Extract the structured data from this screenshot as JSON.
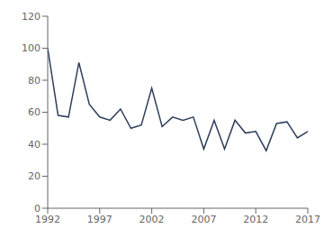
{
  "chart_data": {
    "type": "line",
    "x": [
      1992,
      1993,
      1994,
      1995,
      1996,
      1997,
      1998,
      1999,
      2000,
      2001,
      2002,
      2003,
      2004,
      2005,
      2006,
      2007,
      2008,
      2009,
      2010,
      2011,
      2012,
      2013,
      2014,
      2015,
      2016,
      2017
    ],
    "values": [
      100,
      58,
      57,
      91,
      65,
      57,
      55,
      62,
      50,
      52,
      75,
      51,
      57,
      55,
      57,
      37,
      55,
      37,
      55,
      47,
      48,
      36,
      53,
      54,
      44,
      48
    ],
    "color": "#2E3F5C",
    "xlim": [
      1992,
      2017
    ],
    "ylim": [
      0,
      120
    ],
    "xticks": [
      1992,
      1997,
      2002,
      2007,
      2012,
      2017
    ],
    "yticks": [
      0,
      20,
      40,
      60,
      80,
      100,
      120
    ]
  }
}
